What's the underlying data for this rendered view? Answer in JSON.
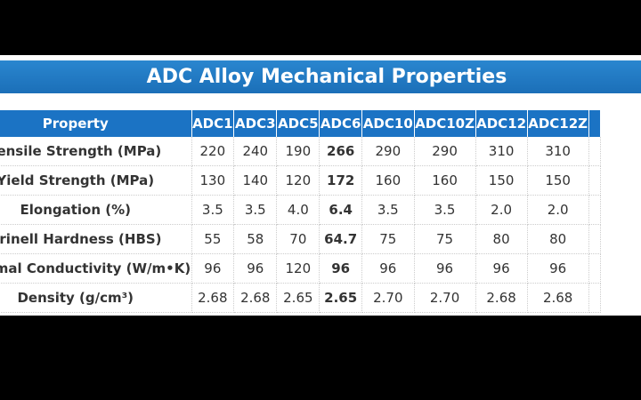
{
  "title": "ADC Alloy Mechanical Properties",
  "table": {
    "header": [
      "Property",
      "ADC1",
      "ADC3",
      "ADC5",
      "ADC6",
      "ADC10",
      "ADC10Z",
      "ADC12",
      "ADC12Z"
    ],
    "rows": [
      {
        "label": "Tensile Strength (MPa)",
        "cells": [
          "220",
          "240",
          "190",
          "266",
          "290",
          "290",
          "310",
          "310"
        ]
      },
      {
        "label": "Yield Strength (MPa)",
        "cells": [
          "130",
          "140",
          "120",
          "172",
          "160",
          "160",
          "150",
          "150"
        ]
      },
      {
        "label": "Elongation (%)",
        "cells": [
          "3.5",
          "3.5",
          "4.0",
          "6.4",
          "3.5",
          "3.5",
          "2.0",
          "2.0"
        ]
      },
      {
        "label": "Brinell Hardness (HBS)",
        "cells": [
          "55",
          "58",
          "70",
          "64.7",
          "75",
          "75",
          "80",
          "80"
        ]
      },
      {
        "label": "Thermal Conductivity (W/m•K)",
        "cells": [
          "96",
          "96",
          "120",
          "96",
          "96",
          "96",
          "96",
          "96"
        ]
      },
      {
        "label": "Density (g/cm³)",
        "cells": [
          "2.68",
          "2.68",
          "2.65",
          "2.65",
          "2.70",
          "2.70",
          "2.68",
          "2.68"
        ]
      }
    ]
  }
}
